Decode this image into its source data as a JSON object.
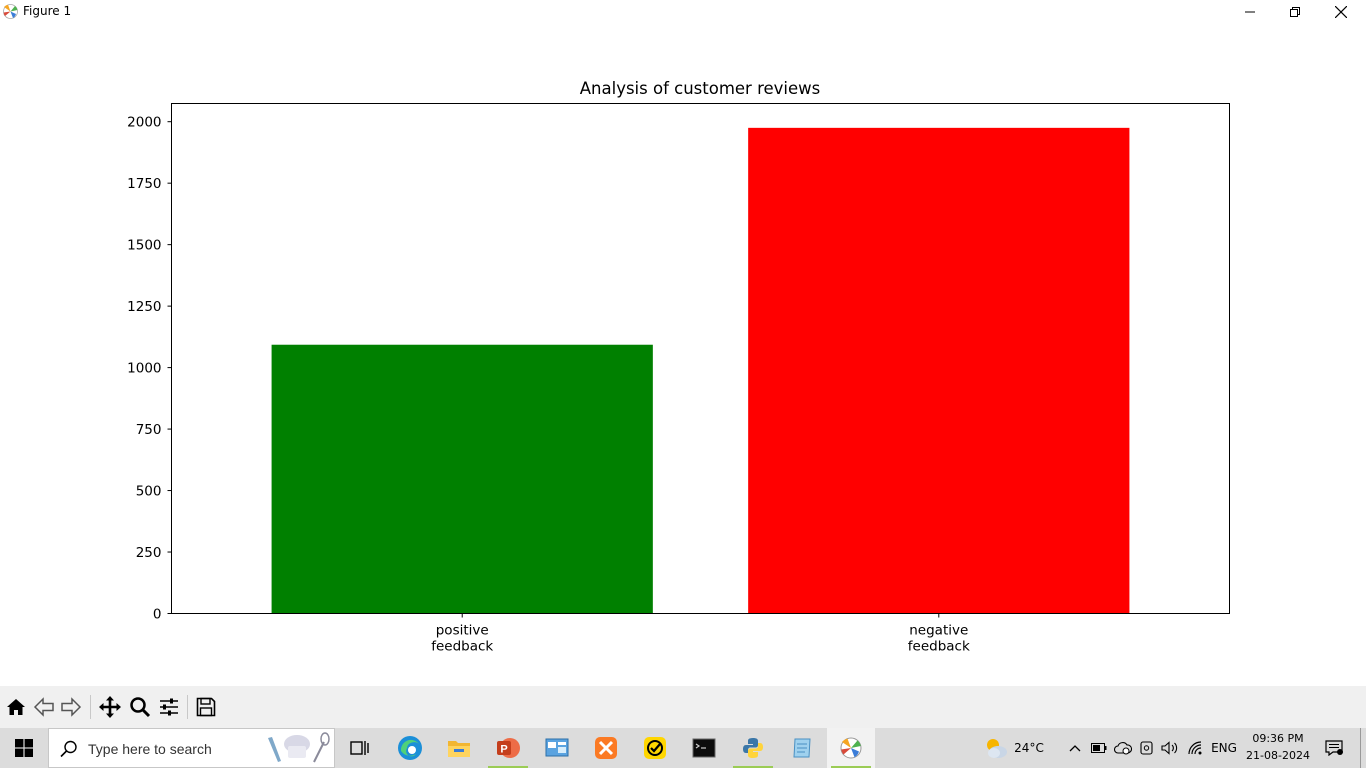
{
  "window": {
    "title": "Figure 1",
    "controls": {
      "minimize": "minimize",
      "maximize": "restore",
      "close": "close"
    }
  },
  "toolbar": {
    "buttons": [
      "home-icon",
      "back-icon",
      "forward-icon",
      "pan-icon",
      "zoom-icon",
      "configure-subplots-icon",
      "save-icon"
    ]
  },
  "chart_data": {
    "type": "bar",
    "title": "Analysis of customer reviews",
    "categories": [
      "positive\nfeedback",
      "negative\nfeedback"
    ],
    "category_lines": [
      [
        "positive",
        "feedback"
      ],
      [
        "negative",
        "feedback"
      ]
    ],
    "values": [
      1093,
      1975
    ],
    "colors": [
      "#008000",
      "#ff0000"
    ],
    "xlabel": "",
    "ylabel": "",
    "ylim": [
      0,
      2074
    ],
    "yticks": [
      0,
      250,
      500,
      750,
      1000,
      1250,
      1500,
      1750,
      2000
    ],
    "ytick_labels": [
      "0",
      "250",
      "500",
      "750",
      "1000",
      "1250",
      "1500",
      "1750",
      "2000"
    ],
    "grid": false,
    "legend": null
  },
  "taskbar": {
    "search_placeholder": "Type here to search",
    "apps": [
      "task-view",
      "edge",
      "file-explorer",
      "powerpoint",
      "control-panel",
      "xampp",
      "norton",
      "command-prompt",
      "python",
      "notepad",
      "matplotlib-figure"
    ],
    "weather_temp": "24°C",
    "language": "ENG",
    "time": "09:36 PM",
    "date": "21-08-2024"
  }
}
